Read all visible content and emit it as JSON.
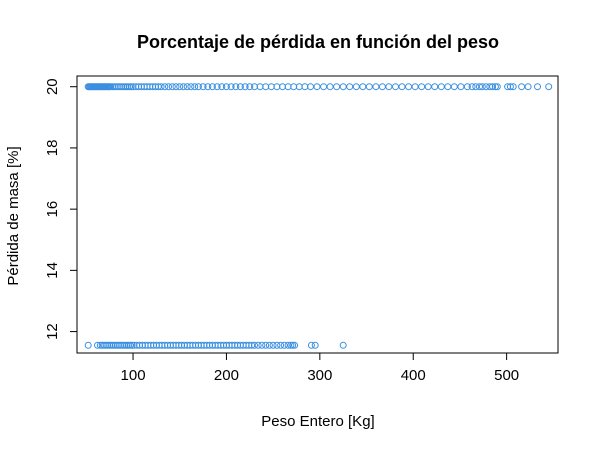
{
  "chart_data": {
    "type": "scatter",
    "title": "Porcentaje de pérdida en función del peso",
    "xlabel": "Peso Entero [Kg]",
    "ylabel": "Pérdida de masa [%]",
    "xlim": [
      40,
      555
    ],
    "ylim": [
      11.3,
      20.35
    ],
    "xticks": [
      100,
      200,
      300,
      400,
      500
    ],
    "yticks": [
      12,
      14,
      16,
      18,
      20
    ],
    "marker": "open-circle",
    "point_color": "#3a8fe0",
    "grid": false,
    "series": [
      {
        "y": 20,
        "x": [
          52,
          53,
          54,
          55,
          56,
          57,
          58,
          59,
          60,
          61,
          62,
          63,
          64,
          65,
          66,
          67,
          68,
          69,
          70,
          71,
          72,
          73,
          74,
          75,
          76,
          78,
          80,
          82,
          84,
          86,
          88,
          90,
          92,
          94,
          96,
          98,
          100,
          103,
          106,
          109,
          112,
          115,
          118,
          121,
          124,
          127,
          130,
          134,
          138,
          142,
          146,
          150,
          154,
          158,
          162,
          166,
          170,
          175,
          180,
          185,
          190,
          195,
          200,
          205,
          210,
          215,
          220,
          225,
          230,
          236,
          242,
          248,
          254,
          260,
          266,
          272,
          278,
          284,
          290,
          297,
          304,
          311,
          318,
          325,
          332,
          339,
          346,
          353,
          360,
          367,
          374,
          381,
          388,
          395,
          402,
          409,
          416,
          423,
          430,
          437,
          444,
          451,
          458,
          463,
          467,
          471,
          474,
          478,
          482,
          485,
          488,
          490,
          501,
          504,
          507,
          516,
          523,
          533,
          545
        ]
      },
      {
        "y": 11.55,
        "x": [
          52,
          62,
          65,
          67,
          69,
          71,
          73,
          75,
          77,
          79,
          81,
          83,
          85,
          87,
          89,
          91,
          93,
          95,
          97,
          99,
          101,
          104,
          107,
          110,
          113,
          116,
          119,
          122,
          125,
          128,
          131,
          134,
          137,
          140,
          143,
          146,
          149,
          152,
          155,
          158,
          161,
          164,
          167,
          170,
          173,
          176,
          179,
          182,
          185,
          188,
          191,
          194,
          197,
          200,
          203,
          206,
          209,
          212,
          215,
          218,
          221,
          224,
          227,
          230,
          234,
          238,
          242,
          246,
          250,
          254,
          258,
          262,
          266,
          269,
          271,
          273,
          291,
          295,
          325
        ]
      }
    ]
  }
}
